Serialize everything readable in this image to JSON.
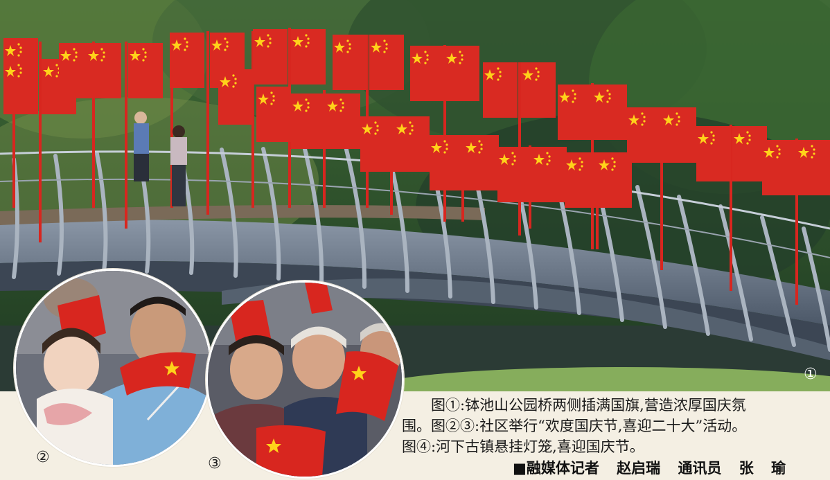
{
  "caption": {
    "line1": "图①:钵池山公园桥两侧插满国旗,营造浓厚国庆氛",
    "line2": "围。图②③:社区举行“欢度国庆节,喜迎二十大”活动。",
    "line3": "图④:河下古镇悬挂灯笼,喜迎国庆节。"
  },
  "credit": {
    "prefix": "■融媒体记者",
    "reporter": "赵启瑞",
    "role2": "通讯员",
    "name2_a": "张",
    "name2_b": "瑜"
  },
  "labels": {
    "photo1": "①",
    "photo2": "②",
    "photo3": "③"
  },
  "colors": {
    "flag_red": "#d8261f",
    "star_yellow": "#ffd21a",
    "bridge": "#6f7e90",
    "tree_green": "#2f5a2c"
  }
}
